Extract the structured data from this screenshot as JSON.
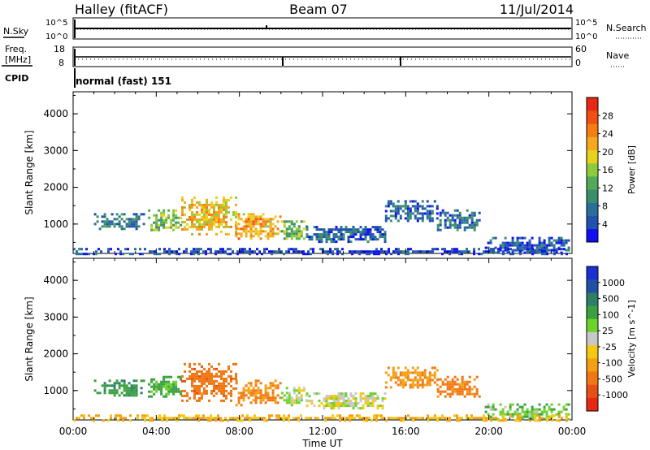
{
  "header": {
    "station": "Halley (fitACF)",
    "beam": "Beam 07",
    "date": "11/Jul/2014"
  },
  "params": {
    "nsky_label": "N.Sky",
    "nsearch_label": "N.Search",
    "freq_label_1": "Freq.",
    "freq_label_2": "[MHz]",
    "nave_label": "Nave",
    "cpid_label": "CPID",
    "cpid_value": "normal (fast) 151",
    "noise_ticks": [
      "10^5",
      "10^0"
    ],
    "freq_ticks": [
      "18",
      "8"
    ],
    "nave_ticks": [
      "60",
      "0"
    ]
  },
  "chart_data": [
    {
      "type": "heatmap",
      "title": "",
      "xlabel": "",
      "ylabel": "Slant Range [km]",
      "xlim": [
        0,
        24
      ],
      "ylim": [
        200,
        4600
      ],
      "yticks": [
        "1000",
        "2000",
        "3000",
        "4000"
      ],
      "colorbar": {
        "label": "Power [dB]",
        "range": [
          0,
          32
        ],
        "ticks": [
          "4",
          "8",
          "12",
          "16",
          "20",
          "24",
          "28"
        ],
        "colors": [
          "#1010f0",
          "#2050b0",
          "#2a6e9a",
          "#3a8f6a",
          "#55a855",
          "#8ccc3c",
          "#e6d21e",
          "#f5a81e",
          "#f57d14",
          "#f05014",
          "#e62814"
        ]
      },
      "blobs": [
        {
          "t0": 1.0,
          "t1": 3.4,
          "r0": 850,
          "r1": 1300,
          "value": 8
        },
        {
          "t0": 3.6,
          "t1": 5.2,
          "r0": 850,
          "r1": 1400,
          "value": 14
        },
        {
          "t0": 5.2,
          "t1": 7.8,
          "r0": 750,
          "r1": 1750,
          "value": 20
        },
        {
          "t0": 7.8,
          "t1": 10.0,
          "r0": 600,
          "r1": 1300,
          "value": 22
        },
        {
          "t0": 10.0,
          "t1": 11.2,
          "r0": 600,
          "r1": 1100,
          "value": 14
        },
        {
          "t0": 11.2,
          "t1": 15.0,
          "r0": 550,
          "r1": 950,
          "value": 6
        },
        {
          "t0": 15.0,
          "t1": 17.5,
          "r0": 1100,
          "r1": 1650,
          "value": 6
        },
        {
          "t0": 17.5,
          "t1": 19.5,
          "r0": 850,
          "r1": 1400,
          "value": 7
        },
        {
          "t0": 19.8,
          "t1": 23.8,
          "r0": 200,
          "r1": 650,
          "value": 5
        },
        {
          "t0": 0.0,
          "t1": 24.0,
          "r0": 200,
          "r1": 350,
          "value": 4
        }
      ]
    },
    {
      "type": "heatmap",
      "title": "",
      "xlabel": "Time UT",
      "ylabel": "Slant Range [km]",
      "xlim": [
        0,
        24
      ],
      "ylim": [
        200,
        4600
      ],
      "xticks": [
        "00:00",
        "04:00",
        "08:00",
        "12:00",
        "16:00",
        "20:00",
        "00:00"
      ],
      "yticks": [
        "1000",
        "2000",
        "3000",
        "4000"
      ],
      "colorbar": {
        "label": "Velocity [m s^-1]",
        "ticks": [
          "1000",
          "500",
          "100",
          "25",
          "-25",
          "-100",
          "-500",
          "-1000"
        ],
        "colors": [
          "#1a30d0",
          "#2050a8",
          "#2e7e6a",
          "#3aa040",
          "#6cd22c",
          "#c8c8c8",
          "#f5c814",
          "#f5a014",
          "#f07814",
          "#e65014",
          "#e62814"
        ]
      },
      "blobs": [
        {
          "t0": 1.0,
          "t1": 3.4,
          "r0": 850,
          "r1": 1300,
          "value": 80
        },
        {
          "t0": 3.6,
          "t1": 5.2,
          "r0": 850,
          "r1": 1400,
          "value": 60
        },
        {
          "t0": 5.2,
          "t1": 7.8,
          "r0": 750,
          "r1": 1750,
          "value": -180
        },
        {
          "t0": 7.8,
          "t1": 10.0,
          "r0": 600,
          "r1": 1300,
          "value": -120
        },
        {
          "t0": 10.0,
          "t1": 11.2,
          "r0": 600,
          "r1": 1100,
          "value": 10
        },
        {
          "t0": 11.2,
          "t1": 15.0,
          "r0": 550,
          "r1": 950,
          "value": 0
        },
        {
          "t0": 15.0,
          "t1": 17.5,
          "r0": 1100,
          "r1": 1650,
          "value": -90
        },
        {
          "t0": 17.5,
          "t1": 19.5,
          "r0": 850,
          "r1": 1400,
          "value": -150
        },
        {
          "t0": 19.8,
          "t1": 23.8,
          "r0": 200,
          "r1": 650,
          "value": 30
        },
        {
          "t0": 0.0,
          "t1": 24.0,
          "r0": 200,
          "r1": 350,
          "value": -40
        }
      ]
    }
  ]
}
